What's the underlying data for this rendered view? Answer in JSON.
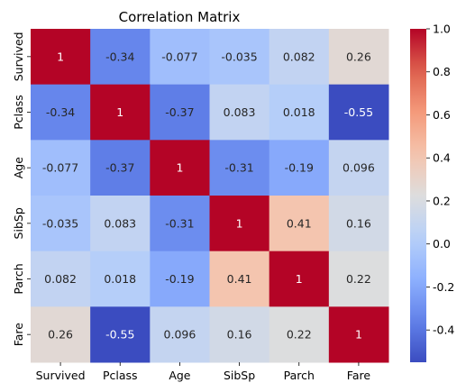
{
  "chart_data": {
    "type": "heatmap",
    "title": "Correlation Matrix",
    "xlabel": "",
    "ylabel": "",
    "x_labels": [
      "Survived",
      "Pclass",
      "Age",
      "SibSp",
      "Parch",
      "Fare"
    ],
    "y_labels": [
      "Survived",
      "Pclass",
      "Age",
      "SibSp",
      "Parch",
      "Fare"
    ],
    "values": [
      [
        1,
        -0.34,
        -0.077,
        -0.035,
        0.082,
        0.26
      ],
      [
        -0.34,
        1,
        -0.37,
        0.083,
        0.018,
        -0.55
      ],
      [
        -0.077,
        -0.37,
        1,
        -0.31,
        -0.19,
        0.096
      ],
      [
        -0.035,
        0.083,
        -0.31,
        1,
        0.41,
        0.16
      ],
      [
        0.082,
        0.018,
        -0.19,
        0.41,
        1,
        0.22
      ],
      [
        0.26,
        -0.55,
        0.096,
        0.16,
        0.22,
        1
      ]
    ],
    "colormap": "coolwarm",
    "color_range": [
      -0.55,
      1.0
    ],
    "colorbar_ticks": [
      "-0.4",
      "-0.2",
      "0.0",
      "0.2",
      "0.4",
      "0.6",
      "0.8",
      "1.0"
    ],
    "colorbar_tick_values": [
      -0.4,
      -0.2,
      0.0,
      0.2,
      0.4,
      0.6,
      0.8,
      1.0
    ],
    "annotations": true,
    "grid": false
  }
}
